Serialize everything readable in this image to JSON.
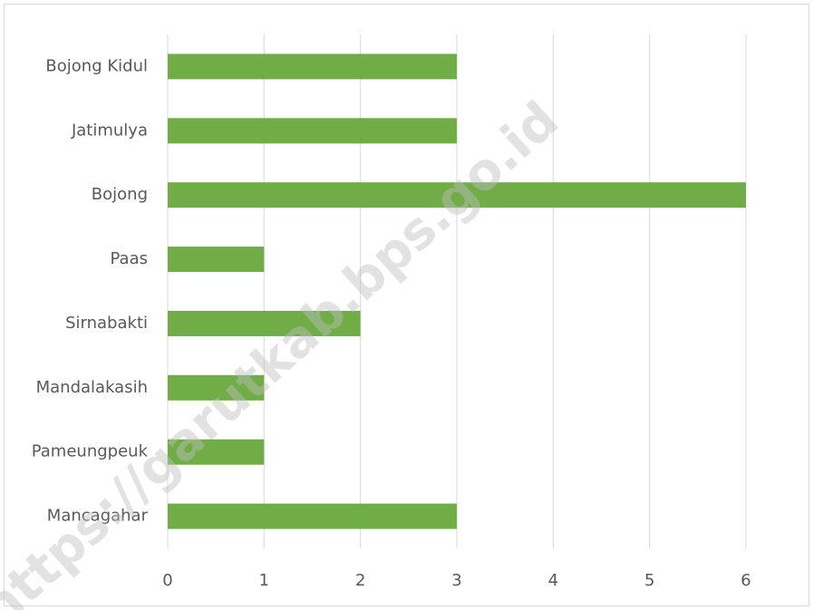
{
  "chart_data": {
    "type": "hbar",
    "categories": [
      "Bojong Kidul",
      "Jatimulya",
      "Bojong",
      "Paas",
      "Sirnabakti",
      "Mandalakasih",
      "Pameungpeuk",
      "Mancagahar"
    ],
    "values": [
      3,
      3,
      6,
      1,
      2,
      1,
      1,
      3
    ],
    "color": "#70ad47",
    "xlim": [
      0,
      6
    ],
    "xticks": [
      0,
      1,
      2,
      3,
      4,
      5,
      6
    ],
    "grid": true,
    "watermark": "https://garutkab.bps.go.id"
  }
}
